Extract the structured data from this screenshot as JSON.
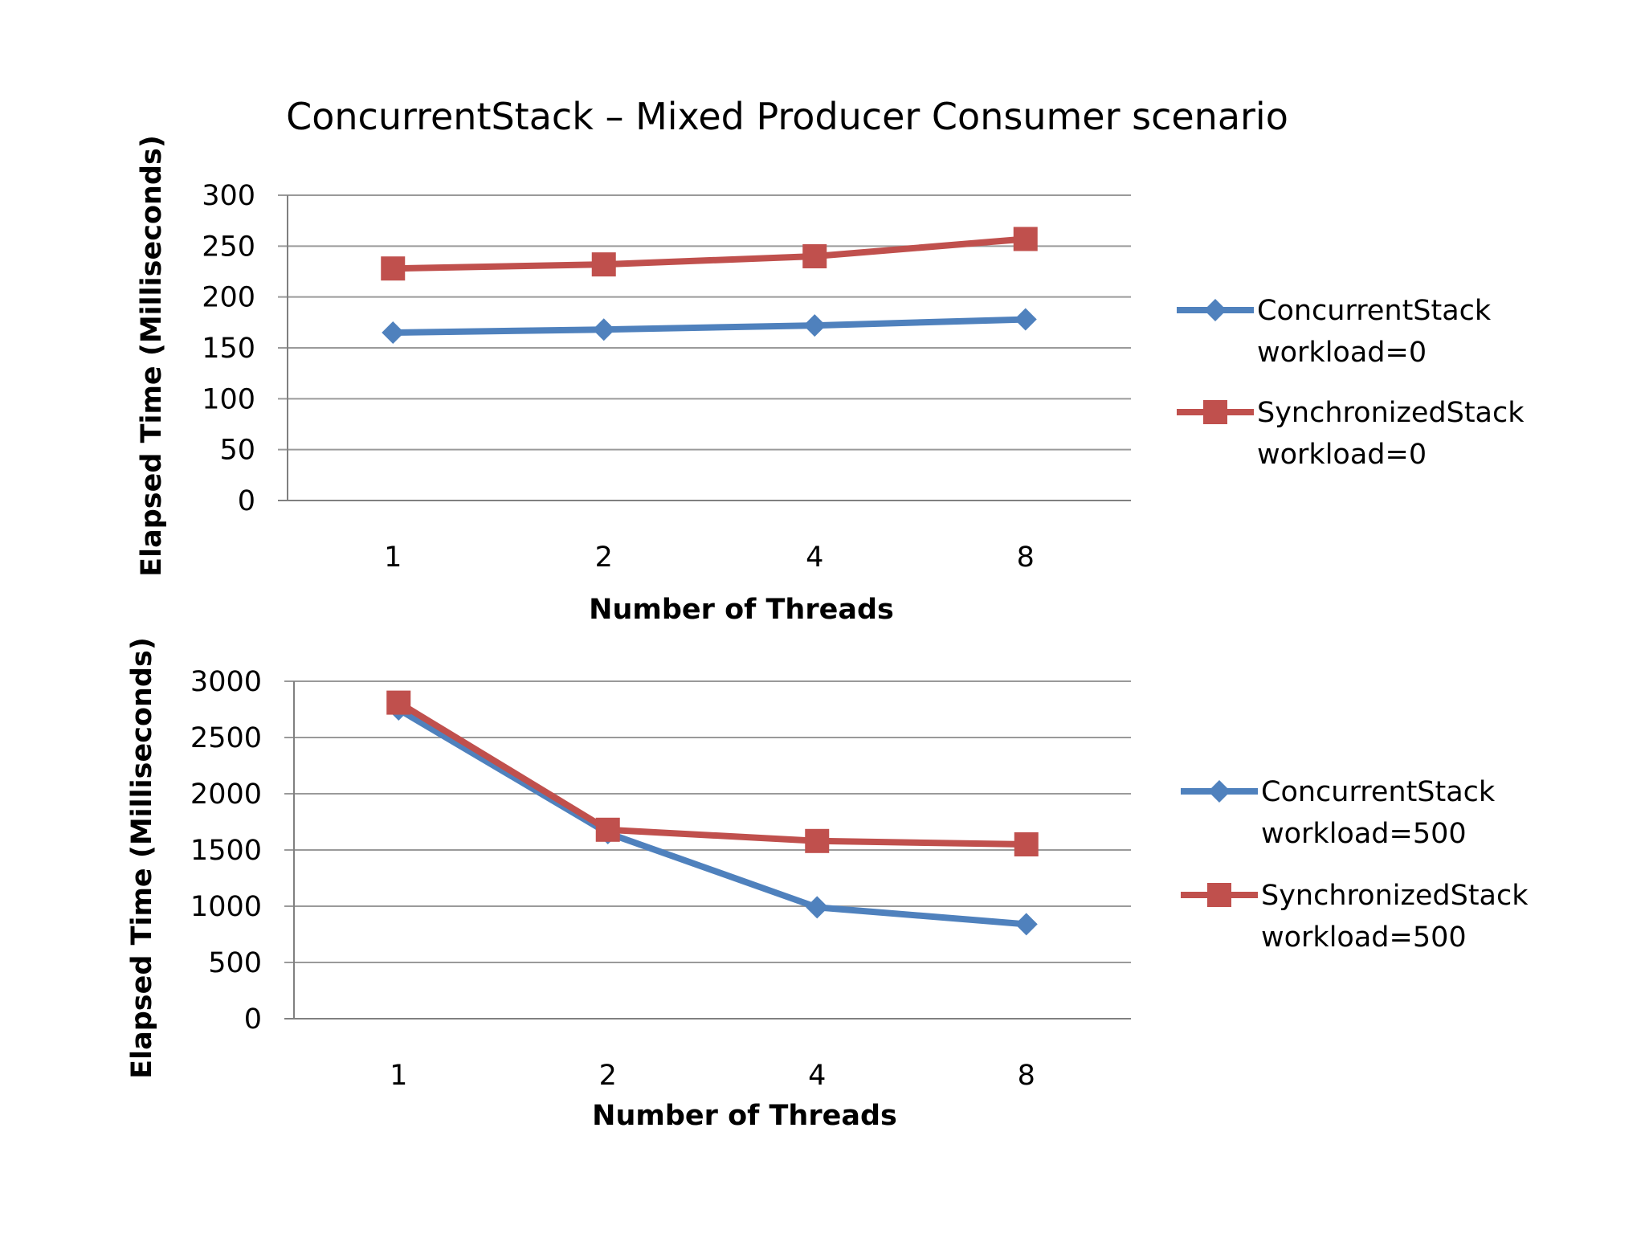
{
  "title": "ConcurrentStack – Mixed Producer Consumer scenario",
  "colors": {
    "concurrent": "#4F81BD",
    "synchronized": "#C0504D",
    "grid": "#9a9a9a",
    "axis": "#808080"
  },
  "chart_data": [
    {
      "type": "line",
      "categories": [
        "1",
        "2",
        "4",
        "8"
      ],
      "xlabel": "Number of Threads",
      "ylabel": "Elapsed Time (Milliseconds)",
      "ylim": [
        0,
        300
      ],
      "yticks": [
        0,
        50,
        100,
        150,
        200,
        250,
        300
      ],
      "grid": true,
      "legend": "right",
      "series": [
        {
          "name": [
            "ConcurrentStack",
            "workload=0"
          ],
          "marker": "diamond",
          "values": [
            165,
            168,
            172,
            178
          ]
        },
        {
          "name": [
            "SynchronizedStack",
            "workload=0"
          ],
          "marker": "square",
          "values": [
            228,
            232,
            240,
            257
          ]
        }
      ]
    },
    {
      "type": "line",
      "categories": [
        "1",
        "2",
        "4",
        "8"
      ],
      "xlabel": "Number of Threads",
      "ylabel": "Elapsed Time (Milliseconds)",
      "ylim": [
        0,
        3000
      ],
      "yticks": [
        0,
        500,
        1000,
        1500,
        2000,
        2500,
        3000
      ],
      "grid": true,
      "legend": "right",
      "series": [
        {
          "name": [
            "ConcurrentStack",
            "workload=500"
          ],
          "marker": "diamond",
          "values": [
            2750,
            1650,
            990,
            840
          ]
        },
        {
          "name": [
            "SynchronizedStack",
            "workload=500"
          ],
          "marker": "square",
          "values": [
            2810,
            1680,
            1580,
            1550
          ]
        }
      ]
    }
  ]
}
